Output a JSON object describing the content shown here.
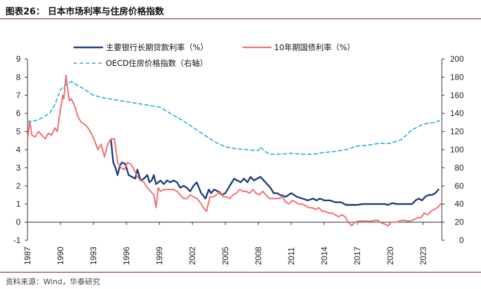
{
  "figure": {
    "title": "图表26：   日本市场利率与住房价格指数",
    "source": "资料来源：Wind，华泰研究"
  },
  "chart_data": {
    "type": "line",
    "title": "日本市场利率与住房价格指数",
    "xlabel": "",
    "ylabel_left": "",
    "ylabel_right": "",
    "xlim": [
      1987,
      2024.7
    ],
    "ylim": [
      -1,
      9
    ],
    "ylim_right": [
      0,
      200
    ],
    "x_ticks": [
      "1987",
      "1990",
      "1993",
      "1996",
      "1999",
      "2002",
      "2005",
      "2008",
      "2011",
      "2014",
      "2017",
      "2020",
      "2023"
    ],
    "y_ticks_left": [
      "-1",
      "0",
      "1",
      "2",
      "3",
      "4",
      "5",
      "6",
      "7",
      "8",
      "9"
    ],
    "y_ticks_right": [
      "0",
      "20",
      "40",
      "60",
      "80",
      "100",
      "120",
      "140",
      "160",
      "180",
      "200"
    ],
    "legend": [
      {
        "name": "主要银行长期贷款利率（%）",
        "color": "#1f3d7a",
        "style": "solid",
        "axis": "left"
      },
      {
        "name": "10年期国债利率（%）",
        "color": "#f07070",
        "style": "solid",
        "axis": "left"
      },
      {
        "name": "OECD住房价格指数（右轴）",
        "color": "#29a9df",
        "style": "dashed",
        "axis": "right"
      }
    ],
    "series": [
      {
        "name": "主要银行长期贷款利率（%）",
        "axis": "left",
        "x": [
          1994.6,
          1994.8,
          1995.0,
          1995.2,
          1995.4,
          1995.6,
          1995.9,
          1996.2,
          1996.5,
          1996.8,
          1997.0,
          1997.3,
          1997.6,
          1997.9,
          1998.1,
          1998.3,
          1998.5,
          1998.7,
          1998.9,
          1999.1,
          1999.4,
          1999.7,
          2000.0,
          2000.3,
          2000.6,
          2000.9,
          2001.2,
          2001.5,
          2001.8,
          2002.1,
          2002.4,
          2002.8,
          2003.2,
          2003.5,
          2003.7,
          2004.0,
          2004.3,
          2004.7,
          2005.0,
          2005.4,
          2005.8,
          2006.1,
          2006.4,
          2006.7,
          2007.0,
          2007.3,
          2007.6,
          2007.9,
          2008.2,
          2008.5,
          2008.8,
          2009.1,
          2009.4,
          2009.7,
          2010.0,
          2010.5,
          2011.0,
          2011.5,
          2012.0,
          2012.5,
          2013.0,
          2013.3,
          2013.6,
          2014.0,
          2014.5,
          2015.0,
          2015.5,
          2016.0,
          2016.5,
          2017.0,
          2017.5,
          2018.0,
          2018.5,
          2019.0,
          2019.5,
          2019.8,
          2020.2,
          2020.6,
          2021.0,
          2021.5,
          2022.0,
          2022.3,
          2022.6,
          2022.9,
          2023.2,
          2023.5,
          2023.8,
          2024.1,
          2024.4
        ],
        "values": [
          4.5,
          3.3,
          3.0,
          2.6,
          3.1,
          3.3,
          3.2,
          2.6,
          2.5,
          2.4,
          2.9,
          2.3,
          2.4,
          2.6,
          2.2,
          2.3,
          2.6,
          2.1,
          2.2,
          2.3,
          2.1,
          2.3,
          2.2,
          2.3,
          2.2,
          1.9,
          2.0,
          1.9,
          1.7,
          2.0,
          2.2,
          1.6,
          1.3,
          1.8,
          1.6,
          1.8,
          1.7,
          1.5,
          1.6,
          2.0,
          2.4,
          2.3,
          2.2,
          2.4,
          2.2,
          2.5,
          2.3,
          2.4,
          2.5,
          2.3,
          2.1,
          1.9,
          1.6,
          1.6,
          1.5,
          1.4,
          1.6,
          1.4,
          1.3,
          1.2,
          1.3,
          1.2,
          1.3,
          1.2,
          1.2,
          1.1,
          1.1,
          0.95,
          0.95,
          0.95,
          1.0,
          1.0,
          1.0,
          1.0,
          1.0,
          0.95,
          1.05,
          1.0,
          1.0,
          1.0,
          1.0,
          1.2,
          1.3,
          1.2,
          1.4,
          1.5,
          1.5,
          1.6,
          1.8
        ]
      },
      {
        "name": "10年期国债利率（%）",
        "axis": "left",
        "x": [
          1987.0,
          1987.2,
          1987.4,
          1987.7,
          1988.0,
          1988.3,
          1988.6,
          1988.9,
          1989.2,
          1989.5,
          1989.7,
          1990.0,
          1990.2,
          1990.3,
          1990.5,
          1990.8,
          1991.0,
          1991.3,
          1991.6,
          1991.9,
          1992.2,
          1992.5,
          1992.8,
          1993.1,
          1993.4,
          1993.7,
          1994.0,
          1994.3,
          1994.6,
          1994.9,
          1995.2,
          1995.5,
          1995.8,
          1996.1,
          1996.4,
          1996.7,
          1997.0,
          1997.3,
          1997.6,
          1997.9,
          1998.2,
          1998.5,
          1998.7,
          1998.9,
          1999.1,
          1999.4,
          1999.7,
          2000.0,
          2000.3,
          2000.6,
          2000.9,
          2001.2,
          2001.5,
          2001.8,
          2002.1,
          2002.4,
          2002.7,
          2003.0,
          2003.3,
          2003.6,
          2003.9,
          2004.2,
          2004.5,
          2004.8,
          2005.1,
          2005.4,
          2005.7,
          2006.0,
          2006.3,
          2006.6,
          2006.9,
          2007.2,
          2007.5,
          2007.8,
          2008.1,
          2008.4,
          2008.7,
          2009.0,
          2009.3,
          2009.6,
          2009.9,
          2010.2,
          2010.5,
          2010.8,
          2011.1,
          2011.4,
          2011.7,
          2012.0,
          2012.3,
          2012.6,
          2012.9,
          2013.2,
          2013.5,
          2013.8,
          2014.1,
          2014.4,
          2014.7,
          2015.0,
          2015.3,
          2015.6,
          2015.9,
          2016.2,
          2016.5,
          2016.8,
          2017.1,
          2017.4,
          2017.7,
          2018.0,
          2018.3,
          2018.6,
          2018.9,
          2019.2,
          2019.5,
          2019.8,
          2020.1,
          2020.4,
          2020.7,
          2021.0,
          2021.3,
          2021.6,
          2021.9,
          2022.2,
          2022.5,
          2022.8,
          2023.1,
          2023.4,
          2023.7,
          2024.0,
          2024.3,
          2024.6
        ],
        "values": [
          4.5,
          5.6,
          4.8,
          4.7,
          5.0,
          4.8,
          4.6,
          4.9,
          4.8,
          5.2,
          5.0,
          6.2,
          7.0,
          6.8,
          8.1,
          6.7,
          6.8,
          6.4,
          5.8,
          5.5,
          5.4,
          5.2,
          4.9,
          4.5,
          4.0,
          4.3,
          3.6,
          4.3,
          4.6,
          4.6,
          3.3,
          3.0,
          2.9,
          3.3,
          3.2,
          2.9,
          2.5,
          2.3,
          2.2,
          1.9,
          1.7,
          1.5,
          0.8,
          1.9,
          1.7,
          1.8,
          1.8,
          1.8,
          1.8,
          1.7,
          1.5,
          1.3,
          1.3,
          1.5,
          1.4,
          1.3,
          1.1,
          0.8,
          0.6,
          1.4,
          1.4,
          1.5,
          1.7,
          1.4,
          1.4,
          1.3,
          1.5,
          1.6,
          1.8,
          1.7,
          1.7,
          1.6,
          1.8,
          1.6,
          1.5,
          1.7,
          1.5,
          1.3,
          1.3,
          1.3,
          1.3,
          1.4,
          1.1,
          1.0,
          1.2,
          1.1,
          1.0,
          1.0,
          0.9,
          0.8,
          0.8,
          0.7,
          0.8,
          0.6,
          0.6,
          0.5,
          0.5,
          0.4,
          0.3,
          0.4,
          0.3,
          0.0,
          -0.2,
          0.0,
          0.05,
          0.06,
          0.05,
          0.05,
          0.05,
          0.1,
          0.1,
          -0.05,
          -0.1,
          -0.2,
          0.0,
          0.0,
          0.02,
          0.1,
          0.1,
          0.05,
          0.07,
          0.15,
          0.25,
          0.25,
          0.5,
          0.4,
          0.6,
          0.7,
          0.8,
          1.0
        ]
      },
      {
        "name": "OECD住房价格指数（右轴）",
        "axis": "right",
        "x": [
          1987.0,
          1988.0,
          1989.0,
          1989.5,
          1990.0,
          1990.5,
          1991.0,
          1992.0,
          1993.0,
          1994.0,
          1995.0,
          1996.0,
          1997.0,
          1998.0,
          1999.0,
          2000.0,
          2001.0,
          2002.0,
          2003.0,
          2004.0,
          2005.0,
          2006.0,
          2007.0,
          2007.8,
          2008.0,
          2008.2,
          2008.5,
          2009.0,
          2010.0,
          2011.0,
          2012.0,
          2013.0,
          2014.0,
          2015.0,
          2016.0,
          2017.0,
          2018.0,
          2019.0,
          2020.0,
          2021.0,
          2022.0,
          2023.0,
          2024.0,
          2024.5
        ],
        "values": [
          130,
          133,
          140,
          150,
          166,
          172,
          175,
          168,
          160,
          157,
          155,
          153,
          151,
          149,
          147,
          140,
          133,
          125,
          117,
          109,
          103,
          101,
          100,
          99,
          99,
          103,
          99,
          95,
          95,
          96,
          95,
          95,
          97,
          98,
          100,
          104,
          105,
          107,
          107,
          111,
          122,
          128,
          130,
          132
        ]
      }
    ]
  }
}
